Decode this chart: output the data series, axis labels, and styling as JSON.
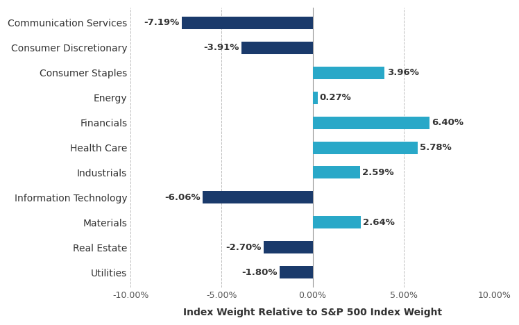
{
  "categories": [
    "Communication Services",
    "Consumer Discretionary",
    "Consumer Staples",
    "Energy",
    "Financials",
    "Health Care",
    "Industrials",
    "Information Technology",
    "Materials",
    "Real Estate",
    "Utilities"
  ],
  "values": [
    -7.19,
    -3.91,
    3.96,
    0.27,
    6.4,
    5.78,
    2.59,
    -6.06,
    2.64,
    -2.7,
    -1.8
  ],
  "labels": [
    "-7.19%",
    "-3.91%",
    "3.96%",
    "0.27%",
    "6.40%",
    "5.78%",
    "2.59%",
    "-6.06%",
    "2.64%",
    "-2.70%",
    "-1.80%"
  ],
  "color_negative": "#1a3a6b",
  "color_positive": "#29a8c8",
  "xlabel": "Index Weight Relative to S&P 500 Index Weight",
  "xlim": [
    -10,
    10
  ],
  "xticks": [
    -10,
    -5,
    0,
    5,
    10
  ],
  "xtick_labels": [
    "-10.00%",
    "-5.00%",
    "0.00%",
    "5.00%",
    "10.00%"
  ],
  "background_color": "#ffffff",
  "grid_color": "#bbbbbb",
  "label_fontsize": 9.5,
  "axis_label_fontsize": 10,
  "tick_fontsize": 9,
  "bar_height": 0.5,
  "category_fontsize": 10
}
